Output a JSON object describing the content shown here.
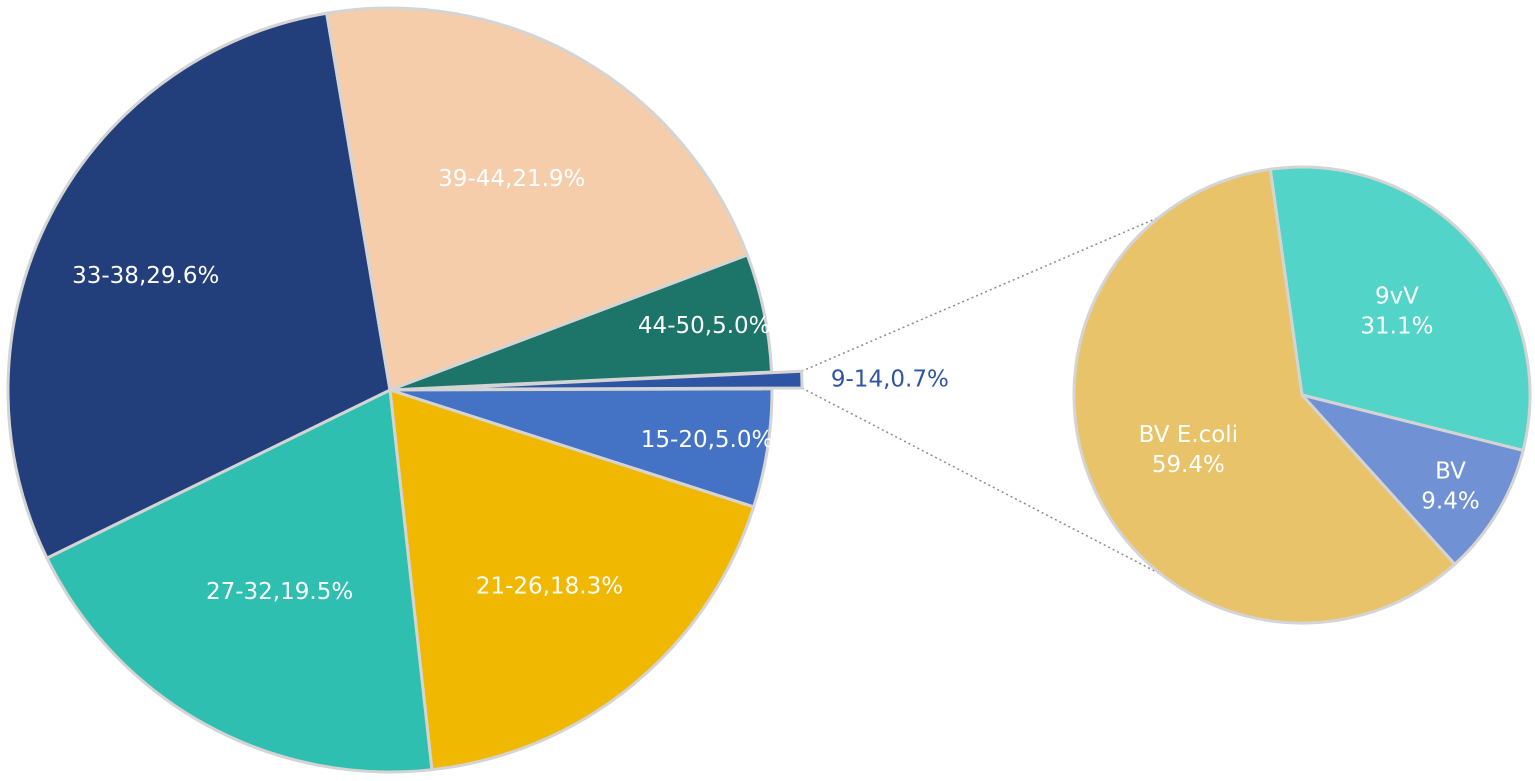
{
  "chart_data": [
    {
      "type": "pie",
      "title": "",
      "categories": [
        "9-14",
        "15-20",
        "21-26",
        "27-32",
        "33-38",
        "39-44",
        "44-50"
      ],
      "values": [
        0.7,
        5.0,
        18.3,
        19.5,
        29.6,
        21.9,
        5.0
      ],
      "labels": [
        "9-14,0.7%",
        "15-20,5.0%",
        "21-26,18.3%",
        "27-32,19.5%",
        "33-38,29.6%",
        "39-44,21.9%",
        "44-50,5.0%"
      ],
      "colors": [
        "#2e55a3",
        "#4472c4",
        "#f0b800",
        "#2fbfb0",
        "#233f7b",
        "#f6cdaa",
        "#1d7469"
      ],
      "exploded_category": "9-14",
      "legend": "none"
    },
    {
      "type": "pie",
      "title": "",
      "detail_of": "9-14",
      "categories": [
        "9vV",
        "BV",
        "BV E.coli"
      ],
      "values": [
        31.1,
        9.4,
        59.4
      ],
      "labels": [
        [
          "9vV",
          "31.1%"
        ],
        [
          "BV",
          "9.4%"
        ],
        [
          "BV E.coli",
          "59.4%"
        ]
      ],
      "colors": [
        "#52d4c8",
        "#7091d4",
        "#e8c36a"
      ],
      "legend": "none"
    }
  ]
}
